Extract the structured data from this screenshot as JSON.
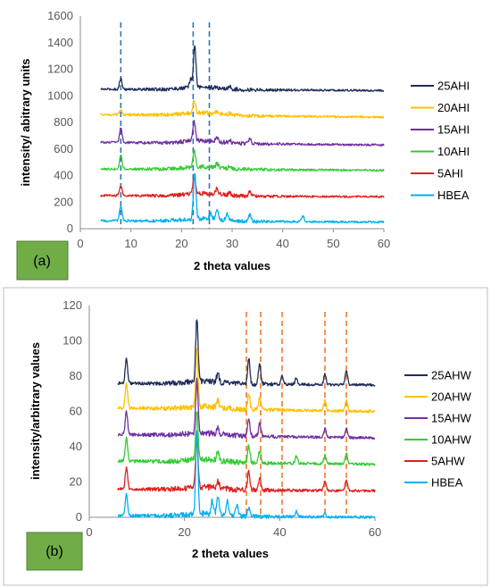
{
  "chart_data": [
    {
      "panel_label": "(a)",
      "type": "line",
      "xlabel": "2 theta values",
      "ylabel": "intensity/ abitrary units",
      "xlim": [
        0,
        60
      ],
      "ylim": [
        0,
        1600
      ],
      "xticks": [
        0,
        10,
        20,
        30,
        40,
        50,
        60
      ],
      "yticks": [
        0,
        200,
        400,
        600,
        800,
        1000,
        1200,
        1400,
        1600
      ],
      "reference_lines_x": [
        8,
        22.3,
        25.5
      ],
      "reference_line_color": "#2e75b6",
      "legend_position": "right",
      "series": [
        {
          "name": "25AHI",
          "color": "#1f2d5a",
          "baseline": 1050,
          "end": 1040,
          "peaks": [
            [
              8,
              80
            ],
            [
              22.6,
              310
            ],
            [
              21.8,
              60
            ],
            [
              29.5,
              20
            ]
          ]
        },
        {
          "name": "20AHI",
          "color": "#ffc000",
          "baseline": 860,
          "end": 840,
          "peaks": [
            [
              8,
              30
            ],
            [
              22.5,
              100
            ],
            [
              27,
              20
            ],
            [
              29.5,
              15
            ]
          ]
        },
        {
          "name": "15AHI",
          "color": "#7030a0",
          "baseline": 650,
          "end": 630,
          "peaks": [
            [
              8,
              110
            ],
            [
              22.5,
              150
            ],
            [
              27,
              30
            ],
            [
              33.5,
              40
            ],
            [
              29.5,
              20
            ]
          ]
        },
        {
          "name": "10AHI",
          "color": "#33cc33",
          "baseline": 450,
          "end": 440,
          "peaks": [
            [
              8,
              110
            ],
            [
              22.5,
              130
            ],
            [
              27,
              30
            ],
            [
              29.5,
              20
            ]
          ]
        },
        {
          "name": "5AHI",
          "color": "#e02020",
          "baseline": 250,
          "end": 240,
          "peaks": [
            [
              8,
              70
            ],
            [
              22.5,
              140
            ],
            [
              27,
              40
            ],
            [
              33.5,
              35
            ],
            [
              29.5,
              20
            ]
          ]
        },
        {
          "name": "HBEA",
          "color": "#00b0f0",
          "baseline": 60,
          "end": 50,
          "peaks": [
            [
              8,
              110
            ],
            [
              22.6,
              350
            ],
            [
              27,
              80
            ],
            [
              29,
              60
            ],
            [
              33.5,
              50
            ],
            [
              44,
              40
            ],
            [
              25.8,
              40
            ]
          ]
        }
      ]
    },
    {
      "panel_label": "(b)",
      "type": "line",
      "xlabel": "2 theta values",
      "ylabel": "intensity/arbitrary values",
      "xlim": [
        0,
        60
      ],
      "ylim": [
        0,
        120
      ],
      "xticks": [
        0,
        20,
        40,
        60
      ],
      "yticks": [
        0,
        20,
        40,
        60,
        80,
        100,
        120
      ],
      "reference_lines_x": [
        33,
        36,
        40.5,
        49.5,
        54
      ],
      "reference_line_color": "#ed7d31",
      "legend_position": "right",
      "series": [
        {
          "name": "25AHW",
          "color": "#1f2d5a",
          "baseline": 76,
          "end": 75,
          "peaks": [
            [
              7.8,
              14
            ],
            [
              22.6,
              36
            ],
            [
              27,
              5
            ],
            [
              33.5,
              14
            ],
            [
              35.8,
              12
            ],
            [
              40.5,
              5
            ],
            [
              43.5,
              4
            ],
            [
              49.5,
              6
            ],
            [
              54,
              8
            ]
          ]
        },
        {
          "name": "20AHW",
          "color": "#ffc000",
          "baseline": 62,
          "end": 60,
          "peaks": [
            [
              7.8,
              14
            ],
            [
              22.6,
              33
            ],
            [
              27,
              4
            ],
            [
              33.5,
              9
            ],
            [
              35.8,
              7
            ],
            [
              49.5,
              6
            ],
            [
              54,
              6
            ]
          ]
        },
        {
          "name": "15AHW",
          "color": "#7030a0",
          "baseline": 47,
          "end": 45,
          "peaks": [
            [
              7.8,
              13
            ],
            [
              22.6,
              30
            ],
            [
              27,
              4
            ],
            [
              33.5,
              9
            ],
            [
              35.8,
              7
            ],
            [
              49.5,
              5
            ],
            [
              54,
              5
            ]
          ]
        },
        {
          "name": "10AHW",
          "color": "#33cc33",
          "baseline": 32,
          "end": 30,
          "peaks": [
            [
              7.8,
              13
            ],
            [
              22.6,
              28
            ],
            [
              27,
              5
            ],
            [
              33.5,
              10
            ],
            [
              35.8,
              7
            ],
            [
              43.5,
              4
            ],
            [
              49.5,
              5
            ],
            [
              54,
              6
            ]
          ]
        },
        {
          "name": "5AHW",
          "color": "#e02020",
          "baseline": 16,
          "end": 15,
          "peaks": [
            [
              7.8,
              12
            ],
            [
              22.6,
              28
            ],
            [
              27,
              4
            ],
            [
              33.5,
              10
            ],
            [
              35.8,
              7
            ],
            [
              49.5,
              5
            ],
            [
              54,
              6
            ]
          ]
        },
        {
          "name": "HBEA",
          "color": "#00b0f0",
          "baseline": 1,
          "end": 0,
          "peaks": [
            [
              7.8,
              12
            ],
            [
              22.6,
              46
            ],
            [
              25.8,
              7
            ],
            [
              27,
              10
            ],
            [
              29,
              9
            ],
            [
              31,
              6
            ],
            [
              33.5,
              5
            ],
            [
              43.5,
              3
            ],
            [
              49.5,
              2
            ]
          ]
        }
      ]
    }
  ]
}
